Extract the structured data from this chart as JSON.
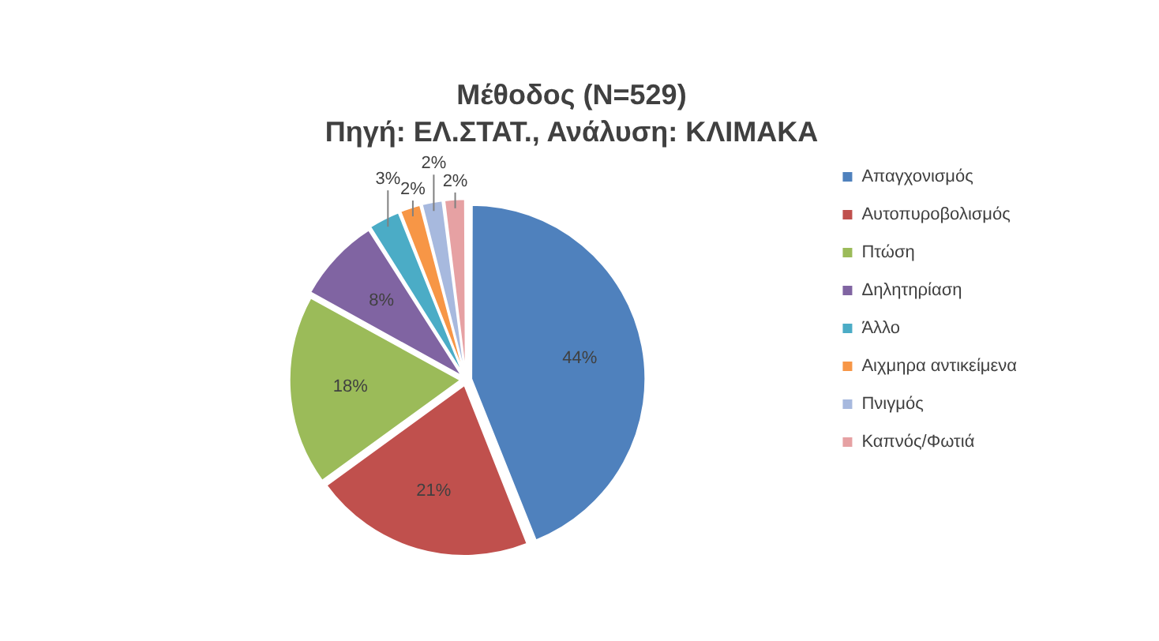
{
  "chart_data": {
    "type": "pie",
    "title": "Μέθοδος (N=529)",
    "subtitle": "Πηγή: ΕΛ.ΣΤΑΤ., Ανάλυση: ΚΛΙΜΑΚΑ",
    "categories": [
      "Απαγχονισμός",
      "Αυτοπυροβολισμός",
      "Πτώση",
      "Δηλητηρίαση",
      "Άλλο",
      "Αιχμηρα αντικείμενα",
      "Πνιγμός",
      "Καπνός/Φωτιά"
    ],
    "values": [
      44,
      21,
      18,
      8,
      3,
      2,
      2,
      2
    ],
    "value_labels": [
      "44%",
      "21%",
      "18%",
      "8%",
      "3%",
      "2%",
      "2%",
      "2%"
    ],
    "colors": [
      "#4f81bd",
      "#c0504d",
      "#9bbb59",
      "#8064a2",
      "#4bacc6",
      "#f79646",
      "#a7b9de",
      "#e6a1a3"
    ],
    "legend": "right"
  }
}
